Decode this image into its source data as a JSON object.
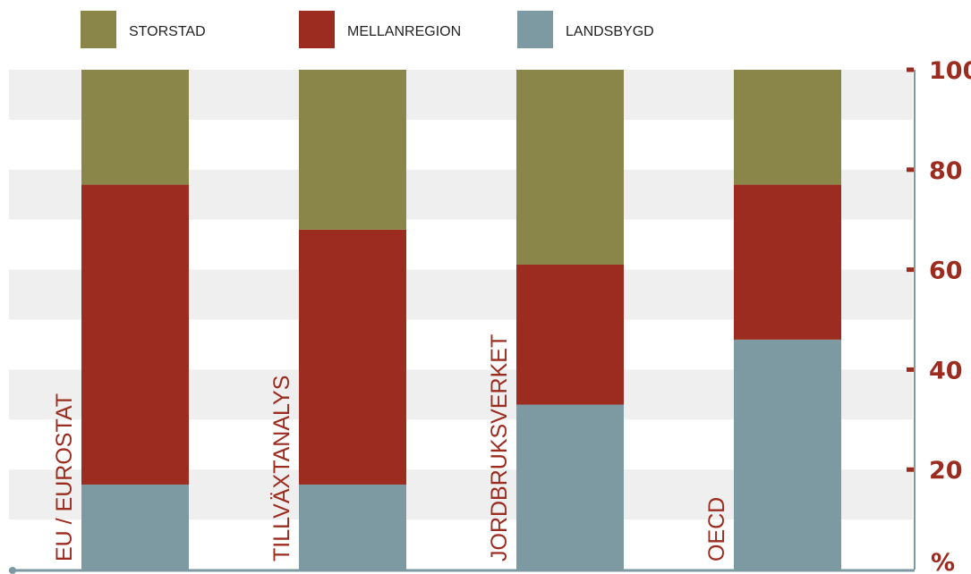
{
  "chart_data": {
    "type": "bar",
    "stacked": true,
    "orientation": "vertical",
    "categories": [
      "EU / EUROSTAT",
      "TILLVÄXTANALYS",
      "JORDBRUKSVERKET",
      "OECD"
    ],
    "series": [
      {
        "name": "LANDSBYGD",
        "color": "#7d99a1",
        "values": [
          17,
          17,
          33,
          46
        ]
      },
      {
        "name": "MELLANREGION",
        "color": "#9b2c1f",
        "values": [
          60,
          51,
          28,
          31
        ]
      },
      {
        "name": "STORSTAD",
        "color": "#8a8549",
        "values": [
          23,
          32,
          39,
          23
        ]
      }
    ],
    "legend_order": [
      "STORSTAD",
      "MELLANREGION",
      "LANDSBYGD"
    ],
    "legend_position": "top-left",
    "y_axis": {
      "position": "right",
      "ticks": [
        20,
        40,
        60,
        80,
        100
      ],
      "unit_label": "%",
      "ylim": [
        0,
        100
      ]
    },
    "grid": "alternating horizontal bands",
    "colors": {
      "band": "#efefef",
      "axis": "#7d99a1",
      "tick_text": "#9b2c1f",
      "category_text": "#9b2c1f"
    }
  }
}
